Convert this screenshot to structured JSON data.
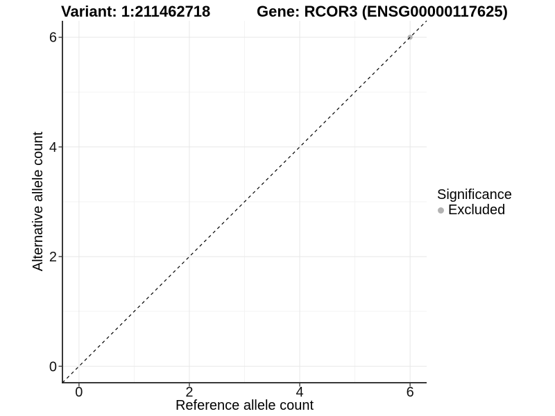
{
  "header": {
    "title_left": "Variant: 1:211462718",
    "title_right": "Gene: RCOR3 (ENSG00000117625)"
  },
  "chart_data": {
    "type": "scatter",
    "titles": [
      "Variant: 1:211462718",
      "Gene: RCOR3 (ENSG00000117625)"
    ],
    "xlabel": "Reference allele count",
    "ylabel": "Alternative allele count",
    "xlim": [
      -0.3,
      6.3
    ],
    "ylim": [
      -0.3,
      6.3
    ],
    "x_ticks": [
      0,
      2,
      4,
      6
    ],
    "y_ticks": [
      0,
      2,
      4,
      6
    ],
    "x_minor_ticks": [
      1,
      3,
      5
    ],
    "y_minor_ticks": [
      1,
      3,
      5
    ],
    "grid": "major+minor",
    "series": [
      {
        "name": "Excluded",
        "marker": "circle",
        "color": "#b3b3b3",
        "points": [
          [
            6,
            6
          ]
        ]
      }
    ],
    "reference_line": {
      "kind": "identity y=x",
      "style": "dashed",
      "color": "#000000",
      "x_start": -0.3,
      "x_end": 6.3
    },
    "legend": {
      "title": "Significance",
      "position": "right",
      "entries": [
        {
          "label": "Excluded",
          "color": "#b3b3b3",
          "marker": "circle"
        }
      ]
    },
    "style": {
      "background": "#ffffff",
      "grid_major": "#e7e7e7",
      "grid_minor": "#f3f3f3",
      "axis": "#373737",
      "tick": "#4a4a4a",
      "tick_label": "#111111",
      "point_radius": 3.6,
      "legend_dot_diameter": 9
    }
  }
}
